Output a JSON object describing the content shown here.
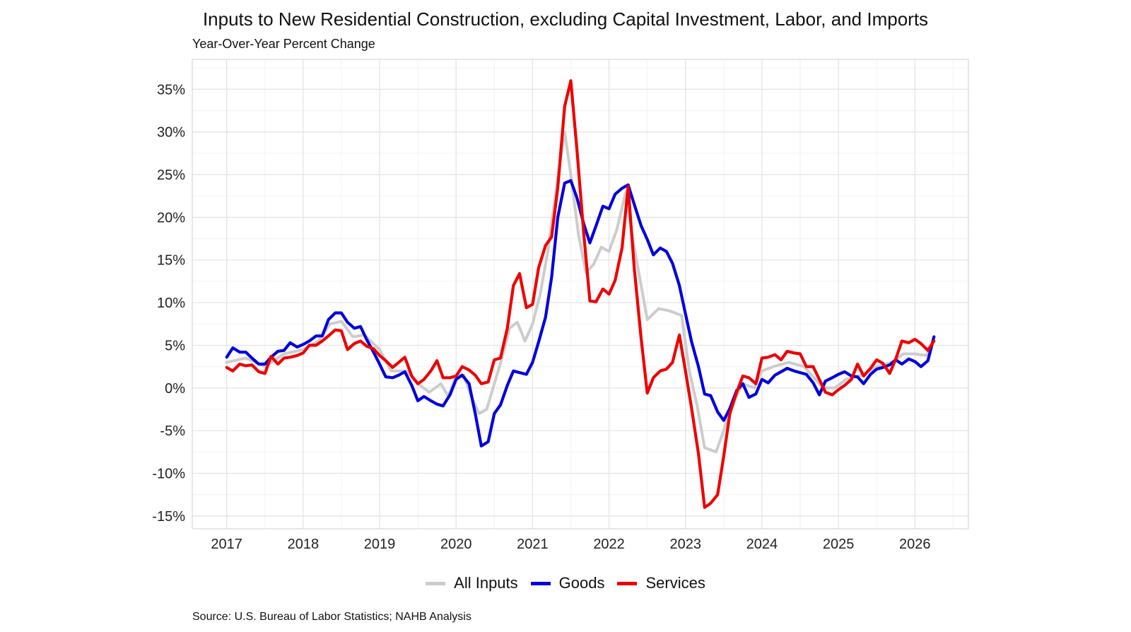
{
  "chart_data": {
    "type": "line",
    "title": "Inputs to New Residential Construction, excluding Capital Investment, Labor, and Imports",
    "subtitle": "Year-Over-Year Percent Change",
    "xlabel": "",
    "ylabel": "",
    "x_ticks": [
      "2017",
      "2018",
      "2019",
      "2020",
      "2021",
      "2022",
      "2023",
      "2024",
      "2025",
      "2026"
    ],
    "y_ticks": [
      "35%",
      "30%",
      "25%",
      "20%",
      "15%",
      "10%",
      "5%",
      "0%",
      "-5%",
      "-10%",
      "-15%"
    ],
    "y_tick_values": [
      35,
      30,
      25,
      20,
      15,
      10,
      5,
      0,
      -5,
      -10,
      -15
    ],
    "ylim": [
      -16.5,
      38.5
    ],
    "xlim": [
      2016.55,
      2026.7
    ],
    "grid": true,
    "legend_position": "bottom",
    "source": "Source: U.S. Bureau of Labor Statistics; NAHB Analysis",
    "series": [
      {
        "name": "All Inputs",
        "color": "#cccccc",
        "points": [
          [
            2017.0,
            3.0
          ],
          [
            2017.25,
            3.5
          ],
          [
            2017.5,
            2.5
          ],
          [
            2017.75,
            4.0
          ],
          [
            2018.0,
            4.5
          ],
          [
            2018.2,
            5.5
          ],
          [
            2018.35,
            7.5
          ],
          [
            2018.5,
            7.8
          ],
          [
            2018.65,
            6.0
          ],
          [
            2018.8,
            6.2
          ],
          [
            2019.0,
            4.5
          ],
          [
            2019.15,
            2.0
          ],
          [
            2019.35,
            2.0
          ],
          [
            2019.5,
            0.5
          ],
          [
            2019.65,
            -0.5
          ],
          [
            2019.8,
            0.5
          ],
          [
            2019.9,
            -1.0
          ],
          [
            2020.0,
            1.5
          ],
          [
            2020.1,
            1.5
          ],
          [
            2020.2,
            -1.0
          ],
          [
            2020.3,
            -3.0
          ],
          [
            2020.4,
            -2.5
          ],
          [
            2020.5,
            0.5
          ],
          [
            2020.6,
            3.5
          ],
          [
            2020.7,
            7.0
          ],
          [
            2020.8,
            7.7
          ],
          [
            2020.9,
            5.5
          ],
          [
            2021.0,
            7.5
          ],
          [
            2021.1,
            11.0
          ],
          [
            2021.2,
            16.0
          ],
          [
            2021.35,
            26.0
          ],
          [
            2021.42,
            30.0
          ],
          [
            2021.5,
            25.0
          ],
          [
            2021.6,
            18.0
          ],
          [
            2021.7,
            13.5
          ],
          [
            2021.8,
            14.5
          ],
          [
            2021.9,
            16.5
          ],
          [
            2022.0,
            16.0
          ],
          [
            2022.1,
            18.5
          ],
          [
            2022.22,
            23.0
          ],
          [
            2022.3,
            18.0
          ],
          [
            2022.42,
            12.0
          ],
          [
            2022.5,
            8.0
          ],
          [
            2022.65,
            9.3
          ],
          [
            2022.8,
            9.0
          ],
          [
            2022.95,
            8.5
          ],
          [
            2023.05,
            2.0
          ],
          [
            2023.15,
            -2.0
          ],
          [
            2023.25,
            -7.0
          ],
          [
            2023.4,
            -7.5
          ],
          [
            2023.5,
            -5.0
          ],
          [
            2023.6,
            -2.0
          ],
          [
            2023.75,
            0.5
          ],
          [
            2023.9,
            0.0
          ],
          [
            2024.0,
            2.0
          ],
          [
            2024.15,
            2.5
          ],
          [
            2024.35,
            3.0
          ],
          [
            2024.55,
            2.5
          ],
          [
            2024.7,
            1.0
          ],
          [
            2024.8,
            0.0
          ],
          [
            2024.95,
            0.0
          ],
          [
            2025.1,
            1.0
          ],
          [
            2025.3,
            1.5
          ],
          [
            2025.5,
            2.5
          ],
          [
            2025.7,
            3.0
          ],
          [
            2025.85,
            4.0
          ],
          [
            2026.0,
            4.0
          ],
          [
            2026.15,
            3.8
          ],
          [
            2026.25,
            5.5
          ]
        ]
      },
      {
        "name": "Goods",
        "color": "#0000dd",
        "points": [
          [
            2017.0,
            3.6
          ],
          [
            2017.08,
            4.7
          ],
          [
            2017.17,
            4.2
          ],
          [
            2017.25,
            4.2
          ],
          [
            2017.33,
            3.5
          ],
          [
            2017.42,
            2.8
          ],
          [
            2017.5,
            2.8
          ],
          [
            2017.58,
            3.6
          ],
          [
            2017.67,
            4.3
          ],
          [
            2017.75,
            4.4
          ],
          [
            2017.83,
            5.3
          ],
          [
            2017.92,
            4.8
          ],
          [
            2018.0,
            5.1
          ],
          [
            2018.08,
            5.5
          ],
          [
            2018.17,
            6.1
          ],
          [
            2018.25,
            6.1
          ],
          [
            2018.33,
            8.0
          ],
          [
            2018.42,
            8.8
          ],
          [
            2018.5,
            8.8
          ],
          [
            2018.58,
            7.7
          ],
          [
            2018.67,
            7.0
          ],
          [
            2018.75,
            7.2
          ],
          [
            2018.83,
            5.7
          ],
          [
            2018.92,
            4.2
          ],
          [
            2019.0,
            2.8
          ],
          [
            2019.08,
            1.3
          ],
          [
            2019.17,
            1.2
          ],
          [
            2019.25,
            1.5
          ],
          [
            2019.33,
            1.9
          ],
          [
            2019.42,
            0.3
          ],
          [
            2019.5,
            -1.5
          ],
          [
            2019.58,
            -1.0
          ],
          [
            2019.67,
            -1.5
          ],
          [
            2019.75,
            -1.9
          ],
          [
            2019.83,
            -2.1
          ],
          [
            2019.92,
            -0.8
          ],
          [
            2020.0,
            1.0
          ],
          [
            2020.08,
            1.5
          ],
          [
            2020.17,
            0.5
          ],
          [
            2020.25,
            -3.0
          ],
          [
            2020.33,
            -6.8
          ],
          [
            2020.42,
            -6.3
          ],
          [
            2020.5,
            -3.0
          ],
          [
            2020.58,
            -2.0
          ],
          [
            2020.67,
            0.3
          ],
          [
            2020.75,
            2.0
          ],
          [
            2020.83,
            1.8
          ],
          [
            2020.92,
            1.6
          ],
          [
            2021.0,
            3.0
          ],
          [
            2021.08,
            5.4
          ],
          [
            2021.17,
            8.3
          ],
          [
            2021.25,
            13.0
          ],
          [
            2021.33,
            20.0
          ],
          [
            2021.42,
            24.0
          ],
          [
            2021.5,
            24.3
          ],
          [
            2021.58,
            22.3
          ],
          [
            2021.67,
            19.2
          ],
          [
            2021.75,
            17.0
          ],
          [
            2021.83,
            19.0
          ],
          [
            2021.92,
            21.3
          ],
          [
            2022.0,
            21.0
          ],
          [
            2022.08,
            22.7
          ],
          [
            2022.17,
            23.4
          ],
          [
            2022.25,
            23.8
          ],
          [
            2022.33,
            21.5
          ],
          [
            2022.42,
            19.0
          ],
          [
            2022.5,
            17.4
          ],
          [
            2022.58,
            15.6
          ],
          [
            2022.67,
            16.4
          ],
          [
            2022.75,
            16.0
          ],
          [
            2022.83,
            14.6
          ],
          [
            2022.92,
            12.0
          ],
          [
            2023.0,
            8.7
          ],
          [
            2023.08,
            5.4
          ],
          [
            2023.17,
            2.5
          ],
          [
            2023.25,
            -0.7
          ],
          [
            2023.33,
            -0.9
          ],
          [
            2023.42,
            -2.8
          ],
          [
            2023.5,
            -3.8
          ],
          [
            2023.58,
            -2.4
          ],
          [
            2023.67,
            -0.3
          ],
          [
            2023.75,
            0.5
          ],
          [
            2023.83,
            -1.1
          ],
          [
            2023.92,
            -0.7
          ],
          [
            2024.0,
            1.0
          ],
          [
            2024.08,
            0.6
          ],
          [
            2024.17,
            1.5
          ],
          [
            2024.25,
            1.9
          ],
          [
            2024.33,
            2.3
          ],
          [
            2024.42,
            2.0
          ],
          [
            2024.5,
            1.8
          ],
          [
            2024.58,
            1.6
          ],
          [
            2024.67,
            0.6
          ],
          [
            2024.75,
            -0.8
          ],
          [
            2024.83,
            0.8
          ],
          [
            2024.92,
            1.2
          ],
          [
            2025.0,
            1.6
          ],
          [
            2025.08,
            1.9
          ],
          [
            2025.17,
            1.4
          ],
          [
            2025.25,
            1.3
          ],
          [
            2025.33,
            0.5
          ],
          [
            2025.42,
            1.6
          ],
          [
            2025.5,
            2.2
          ],
          [
            2025.58,
            2.4
          ],
          [
            2025.67,
            2.7
          ],
          [
            2025.75,
            3.3
          ],
          [
            2025.83,
            2.8
          ],
          [
            2025.92,
            3.4
          ],
          [
            2026.0,
            3.1
          ],
          [
            2026.08,
            2.5
          ],
          [
            2026.17,
            3.2
          ],
          [
            2026.25,
            6.0
          ]
        ]
      },
      {
        "name": "Services",
        "color": "#ee0000",
        "points": [
          [
            2017.0,
            2.4
          ],
          [
            2017.08,
            2.0
          ],
          [
            2017.17,
            2.8
          ],
          [
            2017.25,
            2.6
          ],
          [
            2017.33,
            2.7
          ],
          [
            2017.42,
            1.9
          ],
          [
            2017.5,
            1.7
          ],
          [
            2017.58,
            3.7
          ],
          [
            2017.67,
            2.8
          ],
          [
            2017.75,
            3.5
          ],
          [
            2017.83,
            3.6
          ],
          [
            2017.92,
            3.8
          ],
          [
            2018.0,
            4.1
          ],
          [
            2018.08,
            5.0
          ],
          [
            2018.17,
            5.0
          ],
          [
            2018.25,
            5.5
          ],
          [
            2018.33,
            6.1
          ],
          [
            2018.42,
            6.8
          ],
          [
            2018.5,
            6.7
          ],
          [
            2018.58,
            4.5
          ],
          [
            2018.67,
            5.2
          ],
          [
            2018.75,
            5.5
          ],
          [
            2018.83,
            4.9
          ],
          [
            2018.92,
            4.6
          ],
          [
            2019.0,
            3.8
          ],
          [
            2019.08,
            3.2
          ],
          [
            2019.17,
            2.4
          ],
          [
            2019.25,
            3.0
          ],
          [
            2019.33,
            3.6
          ],
          [
            2019.42,
            1.4
          ],
          [
            2019.5,
            0.5
          ],
          [
            2019.58,
            1.0
          ],
          [
            2019.67,
            2.0
          ],
          [
            2019.75,
            3.2
          ],
          [
            2019.83,
            1.2
          ],
          [
            2019.92,
            1.2
          ],
          [
            2020.0,
            1.4
          ],
          [
            2020.08,
            2.5
          ],
          [
            2020.17,
            2.1
          ],
          [
            2020.25,
            1.5
          ],
          [
            2020.33,
            0.5
          ],
          [
            2020.42,
            0.7
          ],
          [
            2020.5,
            3.3
          ],
          [
            2020.58,
            3.5
          ],
          [
            2020.67,
            7.0
          ],
          [
            2020.75,
            12.0
          ],
          [
            2020.83,
            13.4
          ],
          [
            2020.92,
            9.4
          ],
          [
            2021.0,
            9.8
          ],
          [
            2021.08,
            14.1
          ],
          [
            2021.17,
            16.7
          ],
          [
            2021.25,
            17.7
          ],
          [
            2021.33,
            23.5
          ],
          [
            2021.42,
            33.0
          ],
          [
            2021.5,
            36.0
          ],
          [
            2021.58,
            28.0
          ],
          [
            2021.67,
            18.0
          ],
          [
            2021.75,
            10.2
          ],
          [
            2021.83,
            10.1
          ],
          [
            2021.92,
            11.6
          ],
          [
            2022.0,
            11.0
          ],
          [
            2022.08,
            12.6
          ],
          [
            2022.17,
            16.4
          ],
          [
            2022.25,
            23.6
          ],
          [
            2022.33,
            14.0
          ],
          [
            2022.42,
            5.8
          ],
          [
            2022.5,
            -0.6
          ],
          [
            2022.58,
            1.2
          ],
          [
            2022.67,
            2.0
          ],
          [
            2022.75,
            2.2
          ],
          [
            2022.83,
            3.0
          ],
          [
            2022.92,
            6.2
          ],
          [
            2023.0,
            2.0
          ],
          [
            2023.08,
            -2.4
          ],
          [
            2023.17,
            -7.7
          ],
          [
            2023.25,
            -14.0
          ],
          [
            2023.33,
            -13.5
          ],
          [
            2023.42,
            -12.5
          ],
          [
            2023.5,
            -8.0
          ],
          [
            2023.58,
            -3.0
          ],
          [
            2023.67,
            -0.5
          ],
          [
            2023.75,
            1.4
          ],
          [
            2023.83,
            1.2
          ],
          [
            2023.92,
            0.5
          ],
          [
            2024.0,
            3.5
          ],
          [
            2024.08,
            3.6
          ],
          [
            2024.17,
            3.9
          ],
          [
            2024.25,
            3.3
          ],
          [
            2024.33,
            4.3
          ],
          [
            2024.42,
            4.1
          ],
          [
            2024.5,
            4.0
          ],
          [
            2024.58,
            2.5
          ],
          [
            2024.67,
            2.5
          ],
          [
            2024.75,
            1.0
          ],
          [
            2024.83,
            -0.5
          ],
          [
            2024.92,
            -0.8
          ],
          [
            2025.0,
            -0.2
          ],
          [
            2025.08,
            0.3
          ],
          [
            2025.17,
            1.0
          ],
          [
            2025.25,
            2.8
          ],
          [
            2025.33,
            1.4
          ],
          [
            2025.42,
            2.3
          ],
          [
            2025.5,
            3.3
          ],
          [
            2025.58,
            2.9
          ],
          [
            2025.67,
            1.7
          ],
          [
            2025.75,
            3.4
          ],
          [
            2025.83,
            5.5
          ],
          [
            2025.92,
            5.3
          ],
          [
            2026.0,
            5.7
          ],
          [
            2026.08,
            5.2
          ],
          [
            2026.17,
            4.4
          ],
          [
            2026.25,
            5.5
          ]
        ]
      }
    ]
  }
}
